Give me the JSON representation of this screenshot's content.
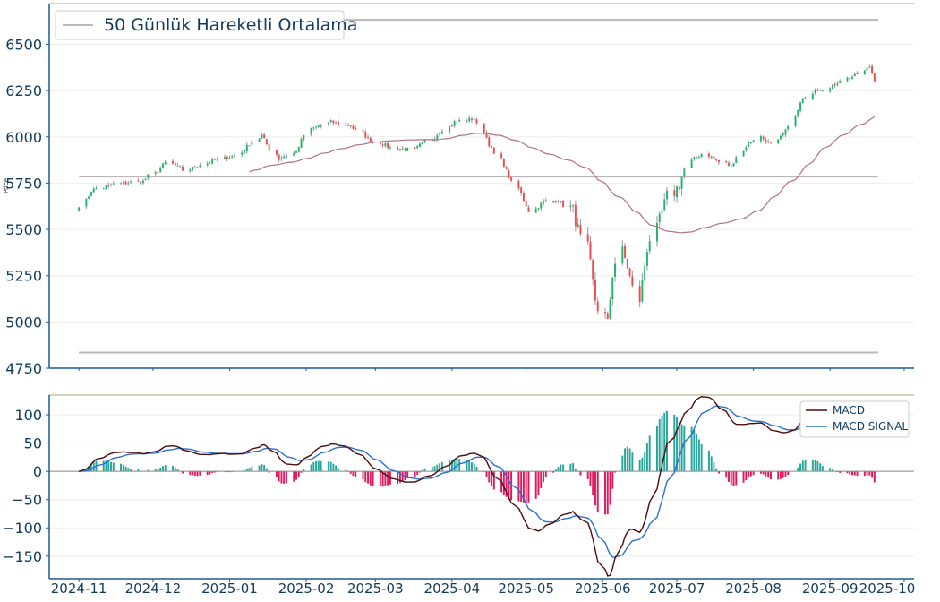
{
  "colors": {
    "up": "#26a69a",
    "up_body": "#22b36a",
    "down": "#ef4b4b",
    "ma": "#b07088",
    "hline": "#bdb5b8",
    "frame_top": "#c9c4a0",
    "axis": "#1f5a96",
    "text": "#123a5e",
    "macd": "#4a0c0c",
    "signal": "#2b6fd0",
    "hist_pos": "#26a69a",
    "hist_neg": "#e0185e",
    "zero": "#8a8a8a"
  },
  "chart_data": [
    {
      "type": "candlestick",
      "ylabel": "Price",
      "ylim": [
        4750,
        6720
      ],
      "yticks": [
        "4750",
        "5000",
        "5250",
        "5500",
        "5750",
        "6000",
        "6250",
        "6500"
      ],
      "legend": {
        "label": "50 Günlük Hareketli Ortalama",
        "placement": "top-left"
      },
      "horizontal_lines": [
        6632,
        5785,
        4835
      ],
      "grid": true,
      "series": [
        {
          "name": "50 Günlük Hareketli Ortalama",
          "kind": "moving-average"
        }
      ]
    },
    {
      "type": "line+bar",
      "ylim": [
        -190,
        135
      ],
      "yticks": [
        "100",
        "50",
        "0",
        "−50",
        "−100",
        "−150"
      ],
      "legend_placement": "top-right",
      "series": [
        {
          "name": "MACD",
          "kind": "line"
        },
        {
          "name": "MACD SIGNAL",
          "kind": "line"
        },
        {
          "name": "",
          "kind": "histogram"
        }
      ],
      "x_tick_labels": [
        "2024-11",
        "2024-12",
        "2025-01",
        "2025-02",
        "2025-03",
        "2025-04",
        "2025-05",
        "2025-06",
        "2025-07",
        "2025-08",
        "2025-09",
        "2025-10"
      ],
      "date_range": [
        "2024-11-01",
        "2025-09-19"
      ]
    }
  ]
}
